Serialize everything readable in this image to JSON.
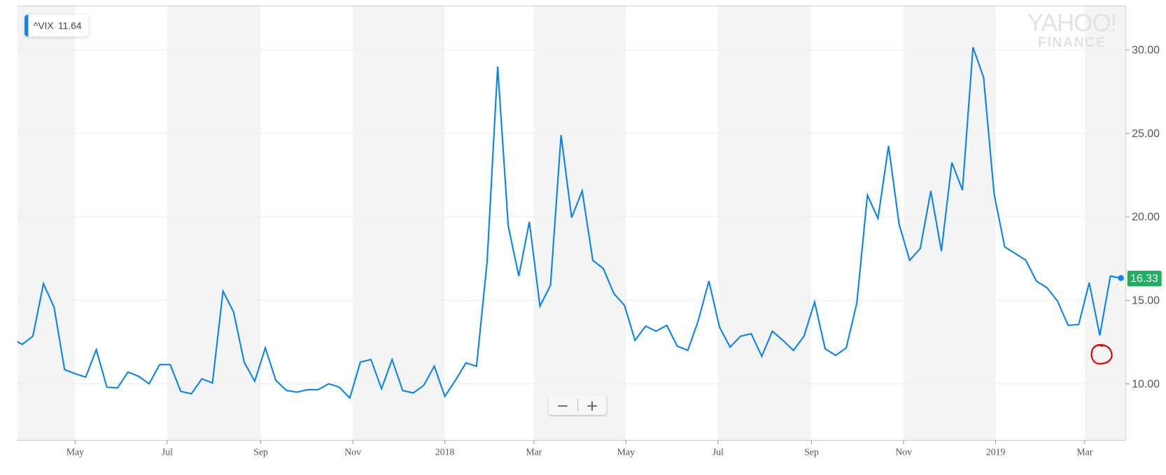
{
  "legend": {
    "symbol": "^VIX",
    "value": "11.64"
  },
  "logo": {
    "line1": "YAHOO!",
    "line2": "FINANCE"
  },
  "zoom_controls": {
    "zoom_out": "−",
    "zoom_in": "+"
  },
  "current_price_tag": "16.33",
  "colors": {
    "line": "#0a84f0",
    "price_tag": "#1fad5f",
    "band": "#f4f4f4",
    "annotation": "#e00000"
  },
  "chart_data": {
    "type": "line",
    "title": "",
    "xlabel": "",
    "ylabel": "",
    "ylim": [
      6.6,
      32.6
    ],
    "xlim": [
      "2017-03-23",
      "2019-04-06"
    ],
    "grid": true,
    "y_axis_side": "right",
    "y_ticks": [
      "10.00",
      "15.00",
      "20.00",
      "25.00",
      "30.00"
    ],
    "x_ticks": [
      {
        "date": "2017-05-01",
        "label": "May"
      },
      {
        "date": "2017-07-01",
        "label": "Jul"
      },
      {
        "date": "2017-09-01",
        "label": "Sep"
      },
      {
        "date": "2017-11-01",
        "label": "Nov"
      },
      {
        "date": "2018-01-01",
        "label": "2018"
      },
      {
        "date": "2018-03-01",
        "label": "Mar"
      },
      {
        "date": "2018-05-01",
        "label": "May"
      },
      {
        "date": "2018-07-01",
        "label": "Jul"
      },
      {
        "date": "2018-09-01",
        "label": "Sep"
      },
      {
        "date": "2018-11-01",
        "label": "Nov"
      },
      {
        "date": "2019-01-01",
        "label": "2019"
      },
      {
        "date": "2019-03-01",
        "label": "Mar"
      }
    ],
    "series": [
      {
        "points": [
          [
            "2017-03-20",
            12.7
          ],
          [
            "2017-03-27",
            12.36
          ],
          [
            "2017-04-03",
            12.85
          ],
          [
            "2017-04-10",
            16.0
          ],
          [
            "2017-04-17",
            14.6
          ],
          [
            "2017-04-24",
            10.85
          ],
          [
            "2017-05-01",
            10.6
          ],
          [
            "2017-05-08",
            10.4
          ],
          [
            "2017-05-15",
            12.05
          ],
          [
            "2017-05-22",
            9.8
          ],
          [
            "2017-05-29",
            9.75
          ],
          [
            "2017-06-05",
            10.7
          ],
          [
            "2017-06-12",
            10.45
          ],
          [
            "2017-06-19",
            10.0
          ],
          [
            "2017-06-26",
            11.15
          ],
          [
            "2017-07-03",
            11.15
          ],
          [
            "2017-07-10",
            9.55
          ],
          [
            "2017-07-17",
            9.4
          ],
          [
            "2017-07-24",
            10.3
          ],
          [
            "2017-07-31",
            10.05
          ],
          [
            "2017-08-07",
            15.55
          ],
          [
            "2017-08-14",
            14.3
          ],
          [
            "2017-08-21",
            11.3
          ],
          [
            "2017-08-28",
            10.15
          ],
          [
            "2017-09-04",
            12.15
          ],
          [
            "2017-09-11",
            10.2
          ],
          [
            "2017-09-18",
            9.6
          ],
          [
            "2017-09-25",
            9.5
          ],
          [
            "2017-10-02",
            9.65
          ],
          [
            "2017-10-09",
            9.65
          ],
          [
            "2017-10-16",
            10.0
          ],
          [
            "2017-10-23",
            9.8
          ],
          [
            "2017-10-30",
            9.15
          ],
          [
            "2017-11-06",
            11.3
          ],
          [
            "2017-11-13",
            11.45
          ],
          [
            "2017-11-20",
            9.7
          ],
          [
            "2017-11-27",
            11.45
          ],
          [
            "2017-12-04",
            9.6
          ],
          [
            "2017-12-11",
            9.45
          ],
          [
            "2017-12-18",
            9.9
          ],
          [
            "2017-12-25",
            11.05
          ],
          [
            "2018-01-01",
            9.25
          ],
          [
            "2018-01-08",
            10.2
          ],
          [
            "2018-01-15",
            11.25
          ],
          [
            "2018-01-22",
            11.05
          ],
          [
            "2018-01-29",
            17.3
          ],
          [
            "2018-02-05",
            29.0
          ],
          [
            "2018-02-12",
            19.45
          ],
          [
            "2018-02-19",
            16.45
          ],
          [
            "2018-02-26",
            19.7
          ],
          [
            "2018-03-05",
            14.65
          ],
          [
            "2018-03-12",
            15.9
          ],
          [
            "2018-03-19",
            24.9
          ],
          [
            "2018-03-26",
            19.95
          ],
          [
            "2018-04-02",
            21.55
          ],
          [
            "2018-04-09",
            17.4
          ],
          [
            "2018-04-16",
            16.9
          ],
          [
            "2018-04-23",
            15.4
          ],
          [
            "2018-04-30",
            14.7
          ],
          [
            "2018-05-07",
            12.6
          ],
          [
            "2018-05-14",
            13.45
          ],
          [
            "2018-05-21",
            13.15
          ],
          [
            "2018-05-28",
            13.5
          ],
          [
            "2018-06-04",
            12.25
          ],
          [
            "2018-06-11",
            12.0
          ],
          [
            "2018-06-18",
            13.8
          ],
          [
            "2018-06-25",
            16.15
          ],
          [
            "2018-07-02",
            13.4
          ],
          [
            "2018-07-09",
            12.2
          ],
          [
            "2018-07-16",
            12.85
          ],
          [
            "2018-07-23",
            13.0
          ],
          [
            "2018-07-30",
            11.65
          ],
          [
            "2018-08-06",
            13.15
          ],
          [
            "2018-08-13",
            12.6
          ],
          [
            "2018-08-20",
            12.0
          ],
          [
            "2018-08-27",
            12.85
          ],
          [
            "2018-09-03",
            14.9
          ],
          [
            "2018-09-10",
            12.1
          ],
          [
            "2018-09-17",
            11.7
          ],
          [
            "2018-09-24",
            12.15
          ],
          [
            "2018-10-01",
            14.85
          ],
          [
            "2018-10-08",
            21.3
          ],
          [
            "2018-10-15",
            19.9
          ],
          [
            "2018-10-22",
            24.25
          ],
          [
            "2018-10-29",
            19.55
          ],
          [
            "2018-11-05",
            17.4
          ],
          [
            "2018-11-12",
            18.1
          ],
          [
            "2018-11-19",
            21.55
          ],
          [
            "2018-11-26",
            17.95
          ],
          [
            "2018-12-03",
            23.25
          ],
          [
            "2018-12-10",
            21.6
          ],
          [
            "2018-12-17",
            30.15
          ],
          [
            "2018-12-24",
            28.35
          ],
          [
            "2018-12-31",
            21.35
          ],
          [
            "2019-01-07",
            18.2
          ],
          [
            "2019-01-14",
            17.8
          ],
          [
            "2019-01-21",
            17.4
          ],
          [
            "2019-01-28",
            16.15
          ],
          [
            "2019-02-04",
            15.75
          ],
          [
            "2019-02-11",
            14.95
          ],
          [
            "2019-02-18",
            13.5
          ],
          [
            "2019-02-25",
            13.55
          ],
          [
            "2019-03-04",
            16.05
          ],
          [
            "2019-03-11",
            12.9
          ],
          [
            "2019-03-18",
            16.45
          ],
          [
            "2019-03-25",
            16.33
          ]
        ]
      }
    ]
  }
}
